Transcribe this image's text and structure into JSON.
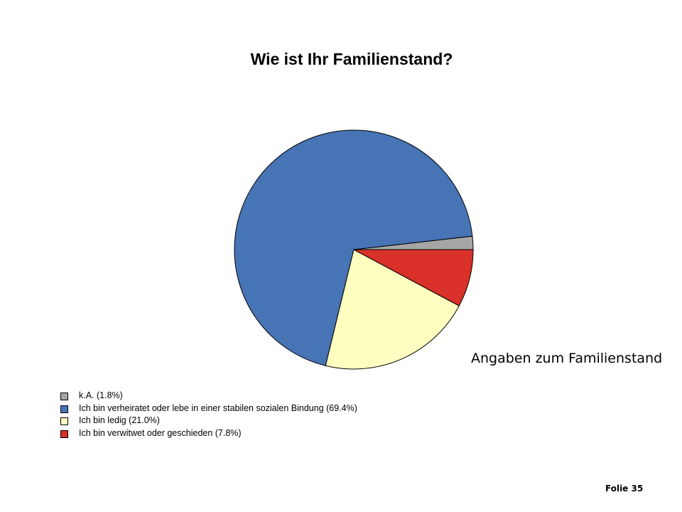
{
  "chart_data": {
    "type": "pie",
    "title": "Wie ist Ihr Familienstand?",
    "subtitle": "Angaben zum Familienstand",
    "legend_position": "bottom-left",
    "slices": [
      {
        "label": "k.A. (1.8%)",
        "value": 1.8,
        "color": "#a6a6a6"
      },
      {
        "label": "Ich bin verheiratet oder lebe in einer stabilen sozialen Bindung (69.4%)",
        "value": 69.4,
        "color": "#4674b5"
      },
      {
        "label": "Ich bin ledig (21.0%)",
        "value": 21.0,
        "color": "#ffffc0"
      },
      {
        "label": "Ich bin verwitwet oder geschieden (7.8%)",
        "value": 7.8,
        "color": "#d9302a"
      }
    ]
  },
  "footer": {
    "slide": "Folie 35"
  }
}
